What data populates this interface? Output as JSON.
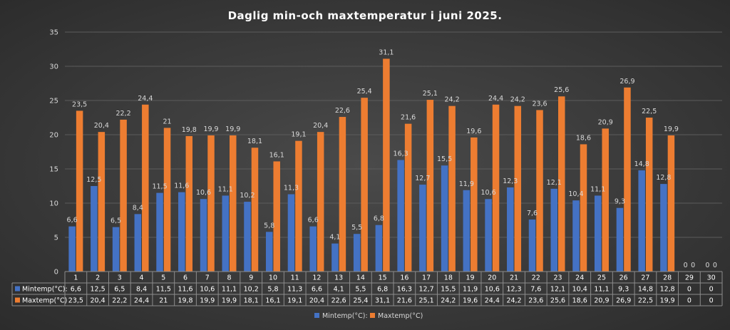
{
  "chart_data": {
    "type": "bar",
    "title": "Daglig min-och maxtemperatur i juni 2025.",
    "categories": [
      "1",
      "2",
      "3",
      "4",
      "5",
      "6",
      "7",
      "8",
      "9",
      "10",
      "11",
      "12",
      "13",
      "14",
      "15",
      "16",
      "17",
      "18",
      "19",
      "20",
      "21",
      "22",
      "23",
      "24",
      "25",
      "26",
      "27",
      "28",
      "29",
      "30"
    ],
    "series": [
      {
        "name": "Mintemp(°C):",
        "color": "#4472c4",
        "values": [
          6.6,
          12.5,
          6.5,
          8.4,
          11.5,
          11.6,
          10.6,
          11.1,
          10.2,
          5.8,
          11.3,
          6.6,
          4.1,
          5.5,
          6.8,
          16.3,
          12.7,
          15.5,
          11.9,
          10.6,
          12.3,
          7.6,
          12.1,
          10.4,
          11.1,
          9.3,
          14.8,
          12.8,
          0,
          0
        ],
        "labels": [
          "6,6",
          "12,5",
          "6,5",
          "8,4",
          "11,5",
          "11,6",
          "10,6",
          "11,1",
          "10,2",
          "5,8",
          "11,3",
          "6,6",
          "4,1",
          "5,5",
          "6,8",
          "16,3",
          "12,7",
          "15,5",
          "11,9",
          "10,6",
          "12,3",
          "7,6",
          "12,1",
          "10,4",
          "11,1",
          "9,3",
          "14,8",
          "12,8",
          "0",
          "0"
        ]
      },
      {
        "name": "Maxtemp(°C)",
        "color": "#ed7d31",
        "values": [
          23.5,
          20.4,
          22.2,
          24.4,
          21,
          19.8,
          19.9,
          19.9,
          18.1,
          16.1,
          19.1,
          20.4,
          22.6,
          25.4,
          31.1,
          21.6,
          25.1,
          24.2,
          19.6,
          24.4,
          24.2,
          23.6,
          25.6,
          18.6,
          20.9,
          26.9,
          22.5,
          19.9,
          0,
          0
        ],
        "labels": [
          "23,5",
          "20,4",
          "22,2",
          "24,4",
          "21",
          "19,8",
          "19,9",
          "19,9",
          "18,1",
          "16,1",
          "19,1",
          "20,4",
          "22,6",
          "25,4",
          "31,1",
          "21,6",
          "25,1",
          "24,2",
          "19,6",
          "24,4",
          "24,2",
          "23,6",
          "25,6",
          "18,6",
          "20,9",
          "26,9",
          "22,5",
          "19,9",
          "0",
          "0"
        ]
      }
    ],
    "table_row_labels": [
      "Mintemp(°C):",
      "Maxtemp(°C)"
    ],
    "legend": [
      "Mintemp(°C):",
      "Maxtemp(°C)"
    ],
    "legend_position": "bottom",
    "ylim": [
      0,
      35
    ],
    "yticks": [
      0,
      5,
      10,
      15,
      20,
      25,
      30,
      35
    ],
    "grid": true,
    "data_table": true
  }
}
